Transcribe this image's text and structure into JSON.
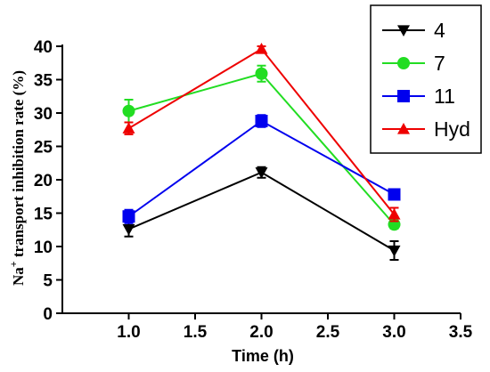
{
  "chart_data": {
    "type": "line",
    "xlabel": "Time (h)",
    "ylabel_prefix": "Na",
    "ylabel_superscript": "+",
    "ylabel_rest": " transport inhibition rate (%)",
    "xlim": [
      0.5,
      3.5
    ],
    "ylim": [
      0,
      40
    ],
    "xticks": [
      "1.0",
      "1.5",
      "2.0",
      "2.5",
      "3.0",
      "3.5"
    ],
    "yticks": [
      "0",
      "5",
      "10",
      "15",
      "20",
      "25",
      "30",
      "35",
      "40"
    ],
    "legend_position": "top-right",
    "grid": false,
    "x": [
      1.0,
      2.0,
      3.0
    ],
    "series": [
      {
        "name": "4",
        "color": "#000000",
        "marker": "triangle-down",
        "values": [
          12.6,
          21.1,
          9.4
        ],
        "errors": [
          1.1,
          0.8,
          1.4
        ]
      },
      {
        "name": "7",
        "color": "#22dd22",
        "marker": "circle",
        "values": [
          30.3,
          35.9,
          13.3
        ],
        "errors": [
          1.7,
          1.2,
          0.6
        ]
      },
      {
        "name": "11",
        "color": "#0000ee",
        "marker": "square",
        "values": [
          14.5,
          28.8,
          17.8
        ],
        "errors": [
          1.0,
          0.9,
          0.5
        ]
      },
      {
        "name": "Hyd",
        "color": "#ee0000",
        "marker": "triangle-up",
        "values": [
          27.7,
          39.6,
          14.8
        ],
        "errors": [
          0.9,
          0.4,
          1.0
        ]
      }
    ]
  }
}
